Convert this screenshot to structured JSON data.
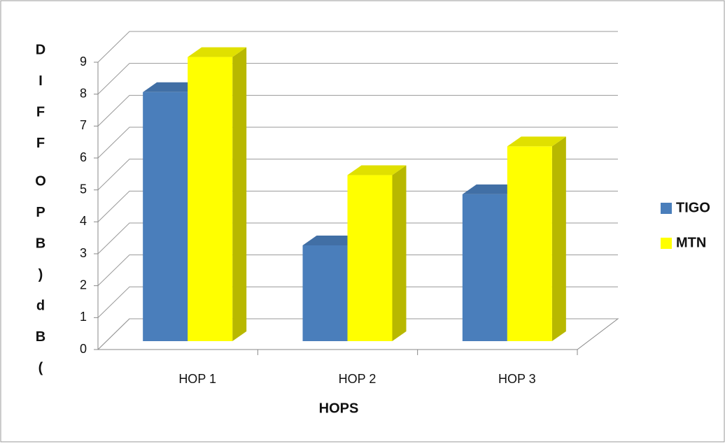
{
  "chart_data": {
    "type": "bar3d",
    "y_label": [
      "D",
      "I",
      "F",
      "F",
      "O",
      "P",
      "B",
      ")",
      "d",
      "B",
      "("
    ],
    "x_label": "HOPS",
    "categories": [
      "HOP 1",
      "HOP 2",
      "HOP 3"
    ],
    "series": [
      {
        "name": "TIGO",
        "color": "#4a7ebb",
        "values": [
          7.8,
          3.0,
          4.6
        ]
      },
      {
        "name": "MTN",
        "color": "#ffff00",
        "values": [
          8.9,
          5.2,
          6.1
        ]
      }
    ],
    "ylim": [
      0,
      9
    ],
    "yticks": [
      0,
      1,
      2,
      3,
      4,
      5,
      6,
      7,
      8,
      9
    ],
    "grid": true,
    "legend": "right"
  }
}
